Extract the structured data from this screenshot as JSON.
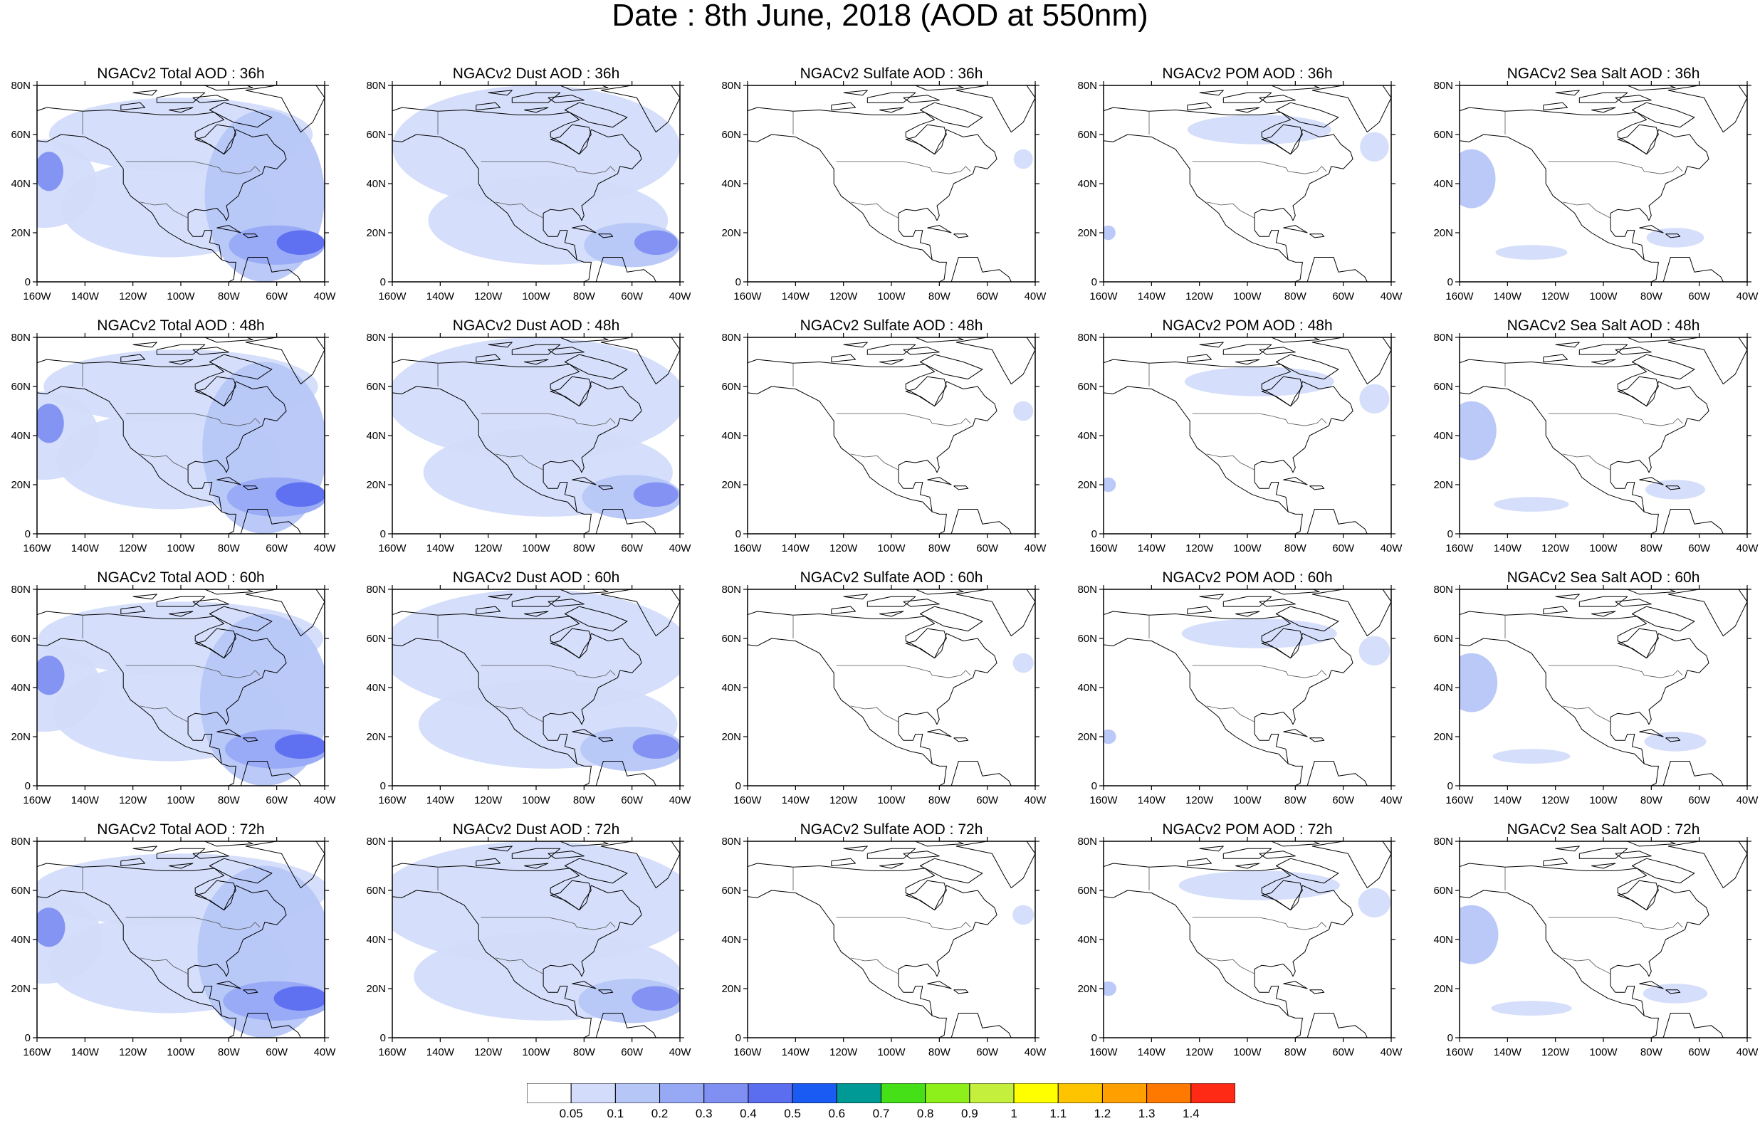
{
  "title": "Date : 8th June, 2018 (AOD at 550nm)",
  "panels": [
    [
      "NGACv2 Total AOD : 36h",
      "NGACv2 Dust AOD : 36h",
      "NGACv2 Sulfate AOD : 36h",
      "NGACv2 POM AOD : 36h",
      "NGACv2 Sea Salt AOD : 36h"
    ],
    [
      "NGACv2 Total AOD : 48h",
      "NGACv2 Dust AOD : 48h",
      "NGACv2 Sulfate AOD : 48h",
      "NGACv2 POM AOD : 48h",
      "NGACv2 Sea Salt AOD : 48h"
    ],
    [
      "NGACv2 Total AOD : 60h",
      "NGACv2 Dust AOD : 60h",
      "NGACv2 Sulfate AOD : 60h",
      "NGACv2 POM AOD : 60h",
      "NGACv2 Sea Salt AOD : 60h"
    ],
    [
      "NGACv2 Total AOD : 72h",
      "NGACv2 Dust AOD : 72h",
      "NGACv2 Sulfate AOD : 72h",
      "NGACv2 POM AOD : 72h",
      "NGACv2 Sea Salt  AOD : 72h"
    ]
  ],
  "lat_ticks": [
    "0",
    "20N",
    "40N",
    "60N",
    "80N"
  ],
  "lon_ticks": [
    "160W",
    "140W",
    "120W",
    "100W",
    "80W",
    "60W",
    "40W"
  ],
  "colorbar": {
    "labels": [
      "0.05",
      "0.1",
      "0.2",
      "0.3",
      "0.4",
      "0.5",
      "0.6",
      "0.7",
      "0.8",
      "0.9",
      "1",
      "1.1",
      "1.2",
      "1.3",
      "1.4"
    ],
    "colors": [
      "#ffffff",
      "#d3dcfa",
      "#b6c6f7",
      "#97a9f5",
      "#7f8ff2",
      "#5c6ef0",
      "#1a5cf3",
      "#009a96",
      "#45e018",
      "#8ef01b",
      "#c4ef3c",
      "#ffff00",
      "#ffc400",
      "#ffa000",
      "#ff7800",
      "#ff2a16"
    ]
  },
  "blobs": {
    "total": [
      {
        "lon": -157,
        "lat": 40,
        "rx": 22,
        "ry": 18,
        "level": 1
      },
      {
        "lon": -100,
        "lat": 60,
        "rx": 55,
        "ry": 15,
        "level": 1
      },
      {
        "lon": -105,
        "lat": 30,
        "rx": 45,
        "ry": 20,
        "level": 1
      },
      {
        "lon": -65,
        "lat": 35,
        "rx": 25,
        "ry": 35,
        "level": 2
      },
      {
        "lon": -60,
        "lat": 15,
        "rx": 20,
        "ry": 8,
        "level": 3
      },
      {
        "lon": -50,
        "lat": 16,
        "rx": 10,
        "ry": 5,
        "level": 5
      },
      {
        "lon": -155,
        "lat": 45,
        "rx": 6,
        "ry": 8,
        "level": 4
      }
    ],
    "dust": [
      {
        "lon": -100,
        "lat": 55,
        "rx": 60,
        "ry": 25,
        "level": 1
      },
      {
        "lon": -95,
        "lat": 25,
        "rx": 50,
        "ry": 18,
        "level": 1
      },
      {
        "lon": -60,
        "lat": 15,
        "rx": 20,
        "ry": 9,
        "level": 2
      },
      {
        "lon": -50,
        "lat": 16,
        "rx": 9,
        "ry": 5,
        "level": 4
      }
    ],
    "sulfate": [
      {
        "lon": -45,
        "lat": 50,
        "rx": 4,
        "ry": 4,
        "level": 1
      }
    ],
    "pom": [
      {
        "lon": -95,
        "lat": 62,
        "rx": 30,
        "ry": 6,
        "level": 1
      },
      {
        "lon": -47,
        "lat": 55,
        "rx": 6,
        "ry": 6,
        "level": 1
      },
      {
        "lon": -158,
        "lat": 20,
        "rx": 3,
        "ry": 3,
        "level": 2
      }
    ],
    "seasalt": [
      {
        "lon": -155,
        "lat": 42,
        "rx": 10,
        "ry": 12,
        "level": 2
      },
      {
        "lon": -70,
        "lat": 18,
        "rx": 12,
        "ry": 4,
        "level": 1
      },
      {
        "lon": -130,
        "lat": 12,
        "rx": 15,
        "ry": 3,
        "level": 1
      }
    ]
  }
}
